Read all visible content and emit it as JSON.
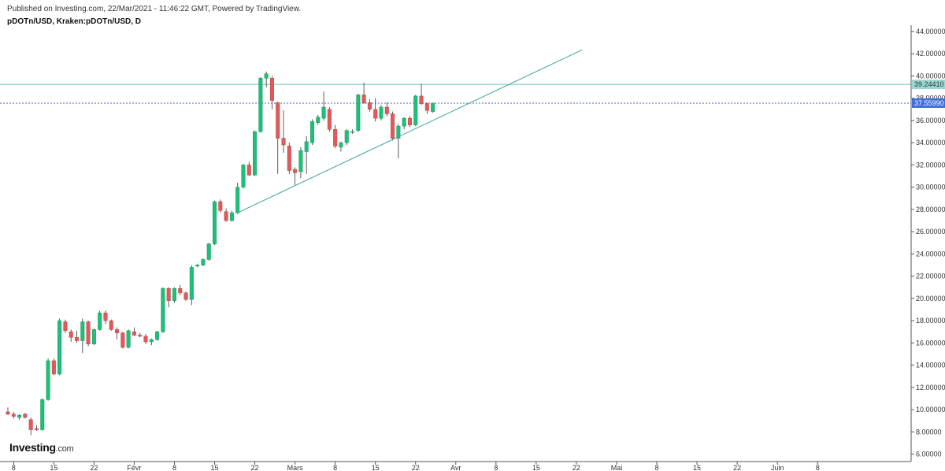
{
  "header": {
    "published": "Published on Investing.com, 22/Mar/2021 - 11:46:22 GMT, Powered by TradingView.",
    "symbol": "pDOTn/USD, Kraken:pDOTn/USD, D"
  },
  "logo": {
    "word": "Investing",
    "suffix": ".com"
  },
  "colors": {
    "up": "#26a69a",
    "up_fill": "#1fbf7a",
    "down": "#e05a5a",
    "trendline": "#3aa39b",
    "resistance": "#69c3b8",
    "current": "#3d5fd6",
    "badge_resistance": "#9fd6cf",
    "badge_current": "#3d6fe0"
  },
  "chart_data": {
    "type": "candlestick",
    "ylim": [
      5.9,
      44.0
    ],
    "y_ticks": [
      "44.00000",
      "42.00000",
      "40.00000",
      "38.00000",
      "36.00000",
      "34.00000",
      "32.00000",
      "30.00000",
      "28.00000",
      "26.00000",
      "24.00000",
      "22.00000",
      "20.00000",
      "18.00000",
      "16.00000",
      "14.00000",
      "12.00000",
      "10.00000",
      "8.00000",
      "6.00000"
    ],
    "x_ticks": [
      "8",
      "15",
      "22",
      "Févr",
      "8",
      "15",
      "22",
      "Mars",
      "8",
      "15",
      "22",
      "Avr",
      "8",
      "15",
      "22",
      "Mai",
      "8",
      "15",
      "22",
      "Juin",
      "8"
    ],
    "date_range": [
      "2021-01-07",
      "2021-06-10"
    ],
    "candles": [
      {
        "d": "2021-01-07",
        "o": 9.8,
        "h": 10.2,
        "l": 9.5,
        "c": 9.6
      },
      {
        "d": "2021-01-08",
        "o": 9.6,
        "h": 9.8,
        "l": 9.2,
        "c": 9.4
      },
      {
        "d": "2021-01-09",
        "o": 9.3,
        "h": 9.6,
        "l": 9.1,
        "c": 9.5
      },
      {
        "d": "2021-01-10",
        "o": 9.6,
        "h": 9.7,
        "l": 9.2,
        "c": 9.3
      },
      {
        "d": "2021-01-11",
        "o": 9.1,
        "h": 9.3,
        "l": 7.7,
        "c": 8.2
      },
      {
        "d": "2021-01-12",
        "o": 8.3,
        "h": 8.6,
        "l": 8.1,
        "c": 8.2
      },
      {
        "d": "2021-01-13",
        "o": 8.2,
        "h": 11.0,
        "l": 8.1,
        "c": 10.9
      },
      {
        "d": "2021-01-14",
        "o": 10.9,
        "h": 14.6,
        "l": 10.8,
        "c": 14.4
      },
      {
        "d": "2021-01-15",
        "o": 14.4,
        "h": 14.6,
        "l": 13.1,
        "c": 13.2
      },
      {
        "d": "2021-01-16",
        "o": 13.2,
        "h": 18.2,
        "l": 13.1,
        "c": 18.0
      },
      {
        "d": "2021-01-17",
        "o": 17.9,
        "h": 18.1,
        "l": 16.9,
        "c": 17.1
      },
      {
        "d": "2021-01-18",
        "o": 17.0,
        "h": 17.2,
        "l": 16.1,
        "c": 16.5
      },
      {
        "d": "2021-01-19",
        "o": 16.5,
        "h": 17.1,
        "l": 16.0,
        "c": 16.2
      },
      {
        "d": "2021-01-20",
        "o": 16.2,
        "h": 18.2,
        "l": 15.1,
        "c": 17.9
      },
      {
        "d": "2021-01-21",
        "o": 17.9,
        "h": 18.0,
        "l": 15.7,
        "c": 15.9
      },
      {
        "d": "2021-01-22",
        "o": 15.9,
        "h": 17.3,
        "l": 15.8,
        "c": 17.2
      },
      {
        "d": "2021-01-23",
        "o": 17.2,
        "h": 18.9,
        "l": 17.1,
        "c": 18.7
      },
      {
        "d": "2021-01-24",
        "o": 18.7,
        "h": 18.9,
        "l": 17.7,
        "c": 18.0
      },
      {
        "d": "2021-01-25",
        "o": 18.0,
        "h": 18.1,
        "l": 17.1,
        "c": 17.2
      },
      {
        "d": "2021-01-26",
        "o": 17.2,
        "h": 17.4,
        "l": 16.3,
        "c": 16.9
      },
      {
        "d": "2021-01-27",
        "o": 16.9,
        "h": 17.0,
        "l": 15.5,
        "c": 15.6
      },
      {
        "d": "2021-01-28",
        "o": 15.6,
        "h": 17.2,
        "l": 15.5,
        "c": 17.1
      },
      {
        "d": "2021-01-29",
        "o": 17.0,
        "h": 17.4,
        "l": 16.6,
        "c": 16.7
      },
      {
        "d": "2021-01-30",
        "o": 16.7,
        "h": 16.9,
        "l": 16.5,
        "c": 16.6
      },
      {
        "d": "2021-01-31",
        "o": 16.6,
        "h": 16.8,
        "l": 15.9,
        "c": 16.1
      },
      {
        "d": "2021-02-01",
        "o": 16.1,
        "h": 16.4,
        "l": 15.8,
        "c": 16.3
      },
      {
        "d": "2021-02-02",
        "o": 16.3,
        "h": 17.1,
        "l": 16.2,
        "c": 17.0
      },
      {
        "d": "2021-02-03",
        "o": 17.0,
        "h": 21.0,
        "l": 16.9,
        "c": 20.9
      },
      {
        "d": "2021-02-04",
        "o": 20.9,
        "h": 21.0,
        "l": 19.2,
        "c": 19.8
      },
      {
        "d": "2021-02-05",
        "o": 19.8,
        "h": 21.0,
        "l": 19.6,
        "c": 20.9
      },
      {
        "d": "2021-02-06",
        "o": 20.9,
        "h": 21.2,
        "l": 20.3,
        "c": 20.5
      },
      {
        "d": "2021-02-07",
        "o": 20.5,
        "h": 20.6,
        "l": 19.8,
        "c": 19.9
      },
      {
        "d": "2021-02-08",
        "o": 19.9,
        "h": 23.0,
        "l": 19.4,
        "c": 22.8
      },
      {
        "d": "2021-02-09",
        "o": 22.9,
        "h": 23.1,
        "l": 22.8,
        "c": 23.0
      },
      {
        "d": "2021-02-10",
        "o": 23.0,
        "h": 23.6,
        "l": 22.9,
        "c": 23.5
      },
      {
        "d": "2021-02-11",
        "o": 23.5,
        "h": 25.0,
        "l": 23.4,
        "c": 24.9
      },
      {
        "d": "2021-02-12",
        "o": 24.9,
        "h": 28.8,
        "l": 24.8,
        "c": 28.7
      },
      {
        "d": "2021-02-13",
        "o": 28.7,
        "h": 28.9,
        "l": 27.7,
        "c": 27.9
      },
      {
        "d": "2021-02-14",
        "o": 27.8,
        "h": 28.1,
        "l": 26.9,
        "c": 27.0
      },
      {
        "d": "2021-02-15",
        "o": 27.0,
        "h": 27.9,
        "l": 26.9,
        "c": 27.7
      },
      {
        "d": "2021-02-16",
        "o": 27.7,
        "h": 30.4,
        "l": 27.6,
        "c": 30.0
      },
      {
        "d": "2021-02-17",
        "o": 30.0,
        "h": 32.1,
        "l": 29.9,
        "c": 32.0
      },
      {
        "d": "2021-02-18",
        "o": 32.0,
        "h": 32.3,
        "l": 31.0,
        "c": 31.1
      },
      {
        "d": "2021-02-19",
        "o": 31.1,
        "h": 35.1,
        "l": 31.0,
        "c": 35.0
      },
      {
        "d": "2021-02-20",
        "o": 35.0,
        "h": 39.9,
        "l": 34.9,
        "c": 39.8
      },
      {
        "d": "2021-02-21",
        "o": 39.8,
        "h": 40.4,
        "l": 39.0,
        "c": 40.2
      },
      {
        "d": "2021-02-22",
        "o": 39.8,
        "h": 40.0,
        "l": 37.0,
        "c": 37.8
      },
      {
        "d": "2021-02-23",
        "o": 37.6,
        "h": 37.7,
        "l": 31.2,
        "c": 34.4
      },
      {
        "d": "2021-02-24",
        "o": 34.4,
        "h": 36.9,
        "l": 33.1,
        "c": 33.8
      },
      {
        "d": "2021-02-25",
        "o": 33.7,
        "h": 34.0,
        "l": 31.2,
        "c": 31.5
      },
      {
        "d": "2021-02-26",
        "o": 31.6,
        "h": 31.8,
        "l": 30.2,
        "c": 31.3
      },
      {
        "d": "2021-02-27",
        "o": 31.4,
        "h": 33.6,
        "l": 30.8,
        "c": 33.3
      },
      {
        "d": "2021-02-28",
        "o": 33.2,
        "h": 34.6,
        "l": 31.2,
        "c": 34.1
      },
      {
        "d": "2021-03-01",
        "o": 34.0,
        "h": 36.1,
        "l": 33.8,
        "c": 35.9
      },
      {
        "d": "2021-03-02",
        "o": 35.8,
        "h": 36.5,
        "l": 35.6,
        "c": 36.3
      },
      {
        "d": "2021-03-03",
        "o": 36.2,
        "h": 38.6,
        "l": 36.0,
        "c": 37.2
      },
      {
        "d": "2021-03-04",
        "o": 37.0,
        "h": 37.2,
        "l": 35.0,
        "c": 35.2
      },
      {
        "d": "2021-03-05",
        "o": 35.2,
        "h": 35.6,
        "l": 33.5,
        "c": 33.7
      },
      {
        "d": "2021-03-06",
        "o": 33.6,
        "h": 34.1,
        "l": 33.2,
        "c": 34.0
      },
      {
        "d": "2021-03-07",
        "o": 34.0,
        "h": 35.2,
        "l": 33.8,
        "c": 35.1
      },
      {
        "d": "2021-03-08",
        "o": 35.0,
        "h": 35.2,
        "l": 34.8,
        "c": 35.0
      },
      {
        "d": "2021-03-09",
        "o": 35.1,
        "h": 38.4,
        "l": 35.0,
        "c": 38.3
      },
      {
        "d": "2021-03-10",
        "o": 38.3,
        "h": 39.4,
        "l": 37.5,
        "c": 37.6
      },
      {
        "d": "2021-03-11",
        "o": 37.6,
        "h": 37.9,
        "l": 36.8,
        "c": 37.0
      },
      {
        "d": "2021-03-12",
        "o": 37.0,
        "h": 38.0,
        "l": 35.9,
        "c": 36.2
      },
      {
        "d": "2021-03-13",
        "o": 36.2,
        "h": 37.4,
        "l": 36.0,
        "c": 37.2
      },
      {
        "d": "2021-03-14",
        "o": 37.2,
        "h": 37.6,
        "l": 36.4,
        "c": 36.6
      },
      {
        "d": "2021-03-15",
        "o": 36.6,
        "h": 36.8,
        "l": 34.2,
        "c": 34.4
      },
      {
        "d": "2021-03-16",
        "o": 34.4,
        "h": 35.7,
        "l": 32.6,
        "c": 35.5
      },
      {
        "d": "2021-03-17",
        "o": 35.5,
        "h": 36.3,
        "l": 35.2,
        "c": 36.2
      },
      {
        "d": "2021-03-18",
        "o": 36.2,
        "h": 36.4,
        "l": 35.4,
        "c": 35.6
      },
      {
        "d": "2021-03-19",
        "o": 35.6,
        "h": 38.3,
        "l": 35.5,
        "c": 38.2
      },
      {
        "d": "2021-03-20",
        "o": 38.2,
        "h": 39.3,
        "l": 37.4,
        "c": 37.5
      },
      {
        "d": "2021-03-21",
        "o": 37.5,
        "h": 37.6,
        "l": 36.6,
        "c": 36.9
      },
      {
        "d": "2021-03-22",
        "o": 36.8,
        "h": 37.6,
        "l": 36.7,
        "c": 37.56
      }
    ],
    "trendline": [
      {
        "d": "2021-02-16",
        "y": 27.7
      },
      {
        "d": "2021-04-17",
        "y": 42.35
      }
    ],
    "resistance_level": 39.2441,
    "resistance_label": "39.24410",
    "current_level": 37.5599,
    "current_label": "37.55990",
    "grid": false
  }
}
